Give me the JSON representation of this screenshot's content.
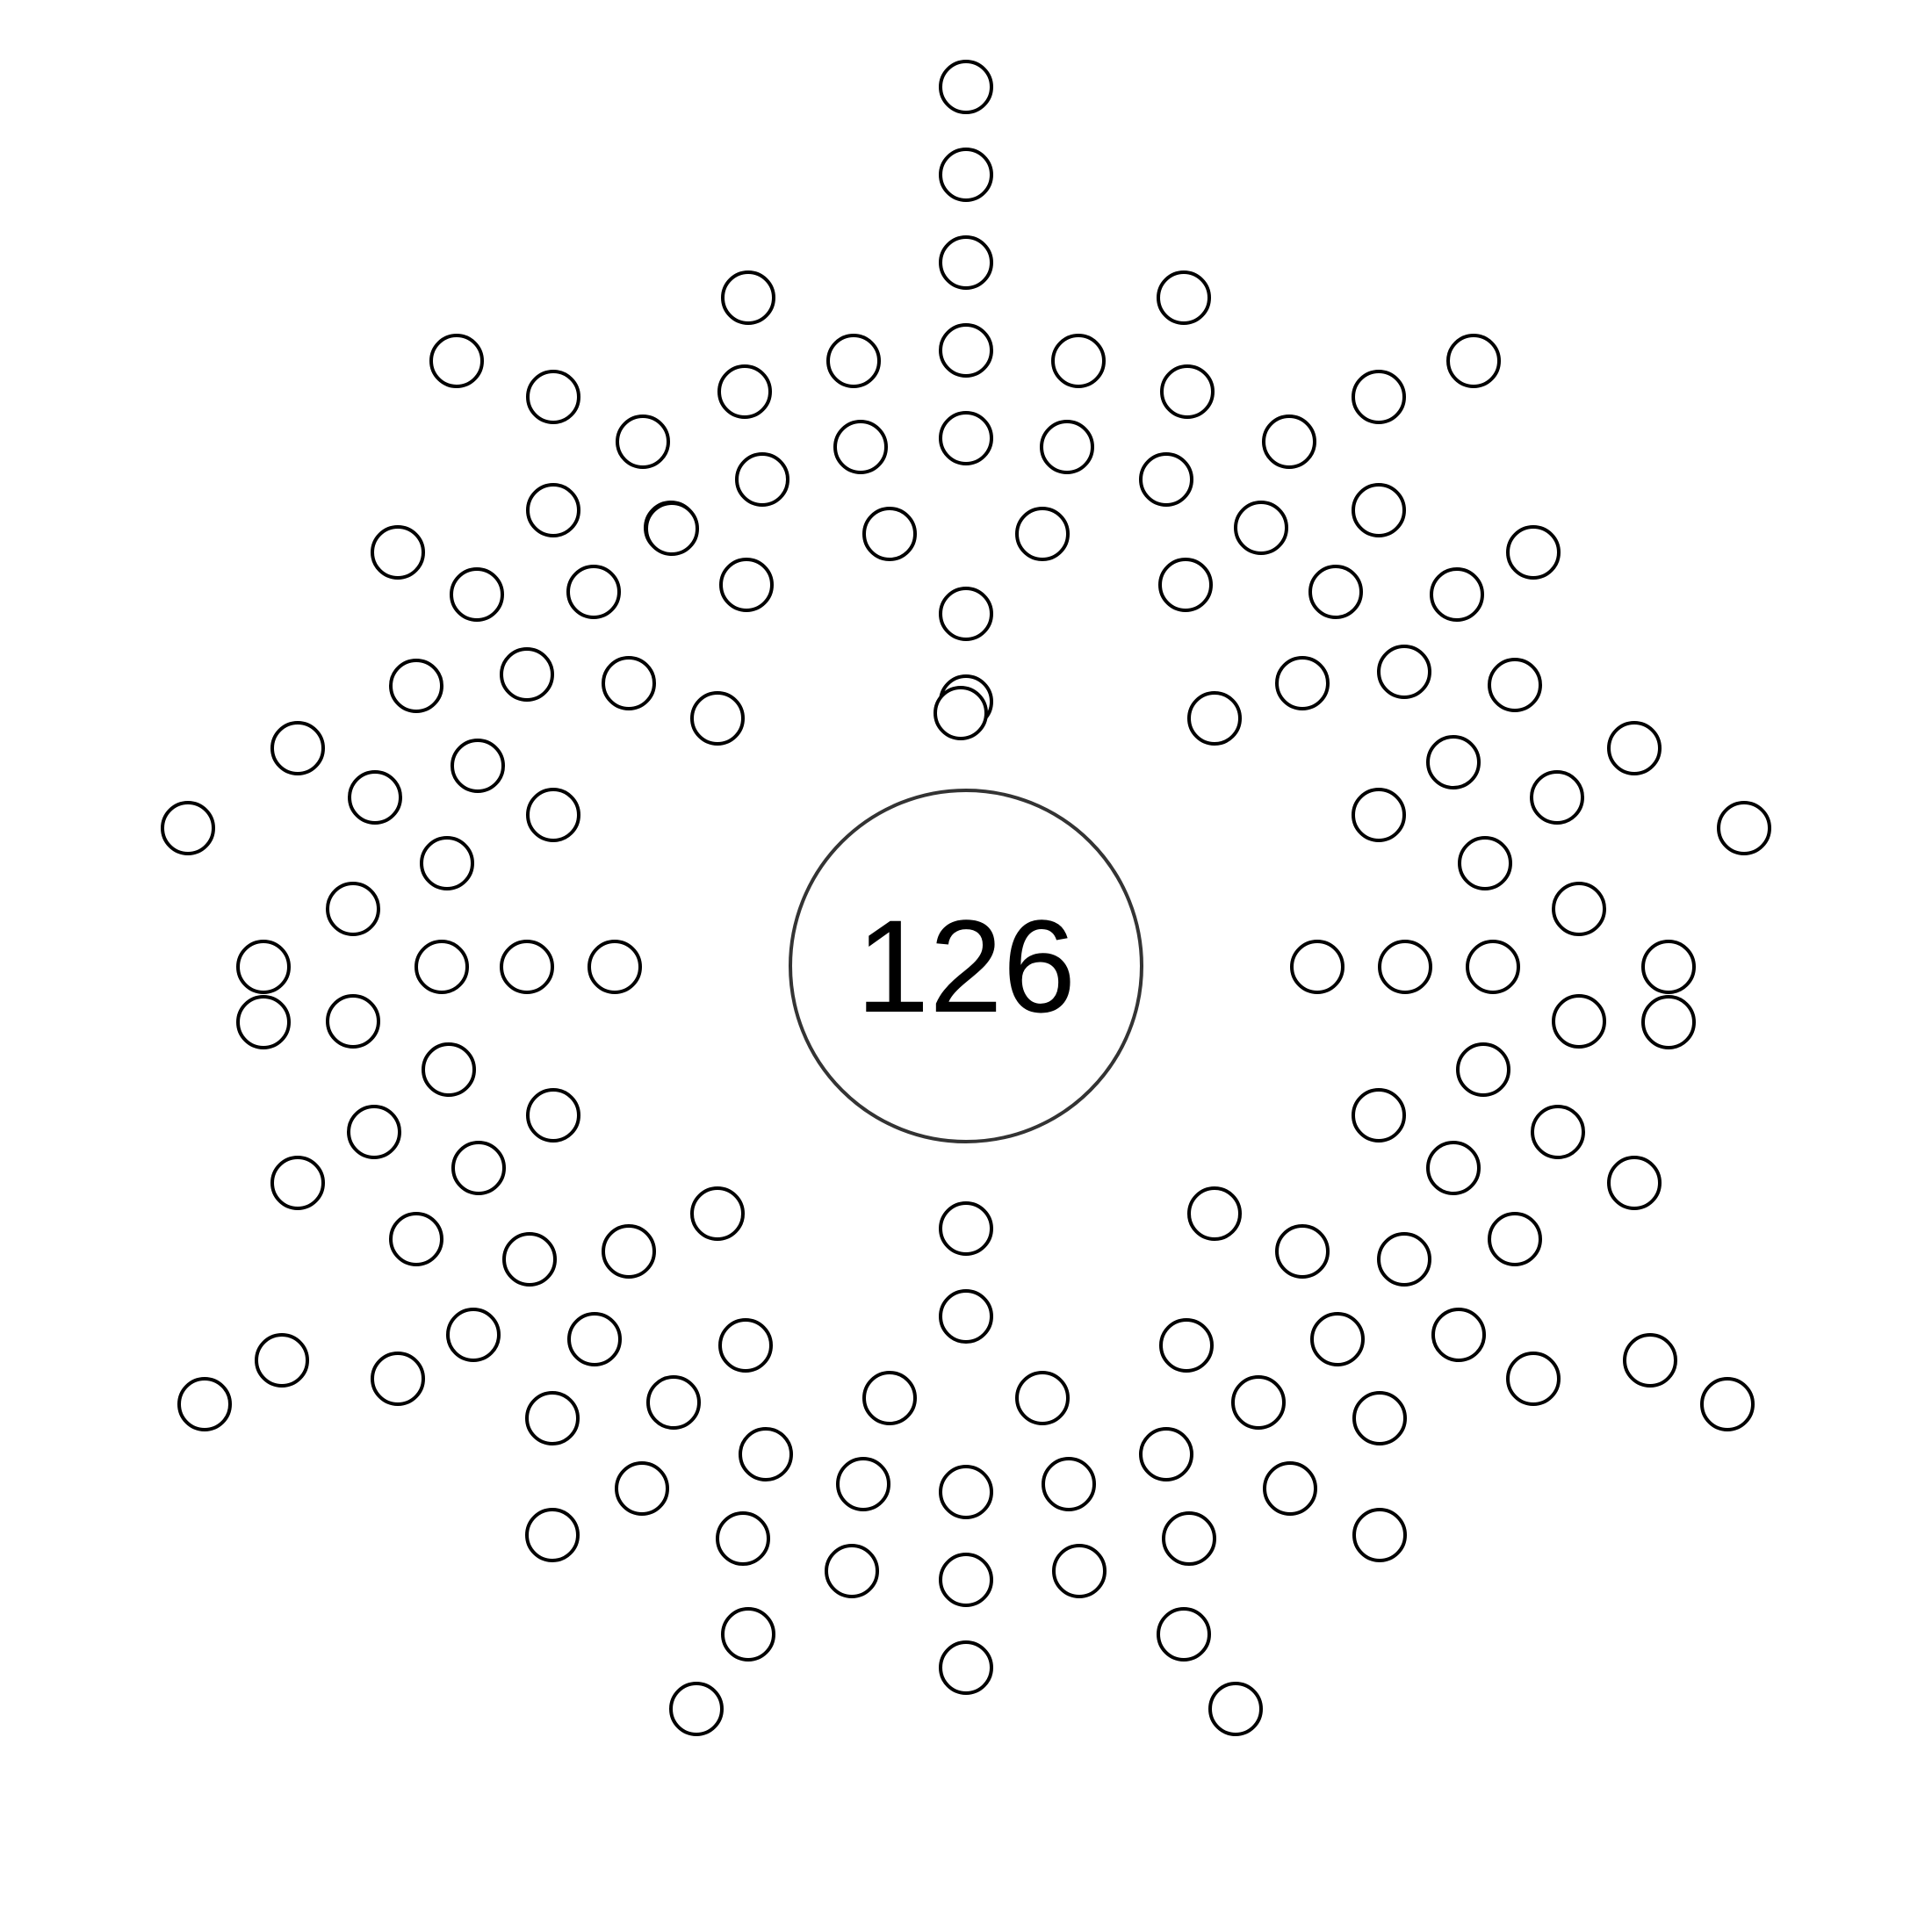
{
  "center": {
    "count_label": "126"
  },
  "colors": {
    "background": "#ffffff",
    "dot_stroke": "#000000",
    "ring_stroke": "#333333"
  }
}
